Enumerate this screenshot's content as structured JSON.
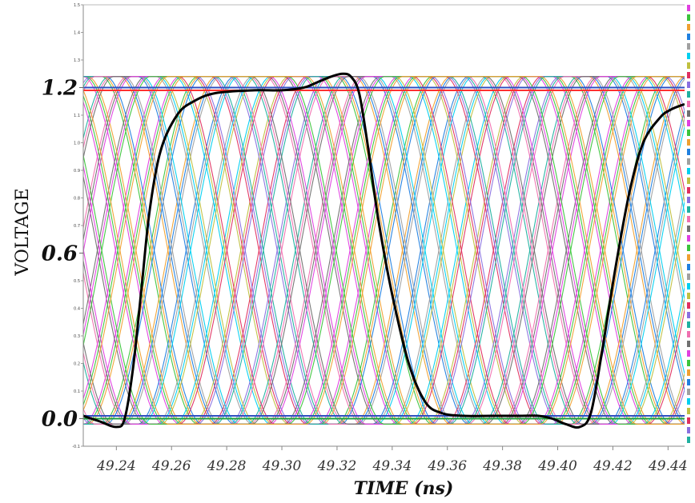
{
  "chart_data": {
    "type": "line",
    "title": "",
    "xlabel": "TIME (ns)",
    "ylabel": "VOLTAGE",
    "xlim": [
      49.228,
      49.446
    ],
    "ylim": [
      -0.1,
      1.5
    ],
    "x_ticks": [
      "49.24",
      "49.26",
      "49.28",
      "49.30",
      "49.32",
      "49.34",
      "49.36",
      "49.38",
      "49.40",
      "49.42",
      "49.44"
    ],
    "y_major_ticks": [
      "0.0",
      "0.6",
      "1.2"
    ],
    "y_minor_ticks": [
      "-0.1",
      "0.1",
      "0.2",
      "0.3",
      "0.4",
      "0.5",
      "0.7",
      "0.8",
      "0.9",
      "1.0",
      "1.1",
      "1.3",
      "1.4",
      "1.5"
    ],
    "grid": false,
    "legend": "none",
    "eye_diagram": {
      "period_ns": 0.17,
      "transition_ns": 0.035,
      "low_level": -0.02,
      "high_level": 1.24,
      "trace_spacing_ns": 0.0066,
      "palette": [
        "#e040e0",
        "#3cc43c",
        "#f0a030",
        "#2080e0",
        "#a0a0a0",
        "#00d0f0",
        "#c0c040",
        "#e03060",
        "#8a70e0",
        "#20b0a0",
        "#f070b0",
        "#707070"
      ]
    },
    "series": [
      {
        "color": "#000000",
        "x": [
          49.228,
          49.234,
          49.24,
          49.243,
          49.246,
          49.249,
          49.252,
          49.256,
          49.262,
          49.268,
          49.276,
          49.29,
          49.3,
          49.308,
          49.313,
          49.318,
          49.322,
          49.325,
          49.328,
          49.331,
          49.335,
          49.34,
          49.346,
          49.352,
          49.358,
          49.366,
          49.376,
          49.386,
          49.393,
          49.398,
          49.403,
          49.408,
          49.412,
          49.416,
          49.421,
          49.426,
          49.431,
          49.437,
          49.441,
          49.446
        ],
        "y": [
          0.01,
          -0.01,
          -0.03,
          0.0,
          0.18,
          0.46,
          0.75,
          0.97,
          1.1,
          1.15,
          1.18,
          1.19,
          1.19,
          1.2,
          1.22,
          1.24,
          1.25,
          1.24,
          1.18,
          1.0,
          0.72,
          0.45,
          0.2,
          0.06,
          0.02,
          0.01,
          0.01,
          0.01,
          0.01,
          0.0,
          -0.02,
          -0.03,
          0.02,
          0.24,
          0.55,
          0.82,
          1.0,
          1.09,
          1.12,
          1.14
        ]
      }
    ],
    "reference_lines": [
      {
        "y": 1.2,
        "color": "#3050c0"
      },
      {
        "y": 1.19,
        "color": "#ff3030"
      },
      {
        "y": 0.01,
        "color": "#3050c0"
      },
      {
        "y": 0.0,
        "color": "#20a040"
      }
    ]
  }
}
